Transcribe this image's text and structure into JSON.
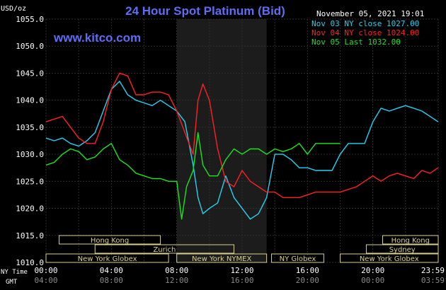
{
  "header": {
    "title": "24 Hour Spot Platinum (Bid)",
    "timestamp": "November 05, 2021 19:01",
    "site": "www.kitco.com",
    "unit": "USD/oz"
  },
  "legend": [
    {
      "text": "Nov 03 NY close 1027.00",
      "color": "#22d3f5"
    },
    {
      "text": "Nov 04 NY close 1024.00",
      "color": "#ff2020"
    },
    {
      "text": "Nov 05 Last 1032.00",
      "color": "#19e619"
    }
  ],
  "colors": {
    "background": "#000000",
    "grid": "#2e2e2e",
    "axis_text": "#ffffff",
    "title": "#5f6df5",
    "site": "#5f6df5",
    "session_shade": "#1c1c1c",
    "market_box": "#d8cf8f"
  },
  "axes": {
    "ny_time_label": "NY Time",
    "gmt_label": "GMT",
    "ny_ticks": [
      "00:00",
      "04:00",
      "08:00",
      "12:00",
      "16:00",
      "20:00",
      "23:59"
    ],
    "gmt_ticks": [
      "04:00",
      "08:00",
      "12:00",
      "16:00",
      "20:00",
      "00:00",
      "03:59"
    ]
  },
  "markets": [
    {
      "label": "Hong Kong",
      "row": 0,
      "start": 0.8,
      "end": 7.0
    },
    {
      "label": "Zurich",
      "row": 1,
      "start": 3.0,
      "end": 11.5
    },
    {
      "label": "New York Globex",
      "row": 2,
      "start": 0.0,
      "end": 7.5
    },
    {
      "label": "New York NYMEX",
      "row": 2,
      "start": 8.0,
      "end": 13.5
    },
    {
      "label": "NY Globex",
      "row": 2,
      "start": 13.8,
      "end": 17.0
    },
    {
      "label": "Hong Kong",
      "row": 0,
      "start": 20.6,
      "end": 24.0
    },
    {
      "label": "Sydney",
      "row": 1,
      "start": 19.6,
      "end": 24.0
    },
    {
      "label": "New York Globex",
      "row": 2,
      "start": 18.0,
      "end": 24.0
    }
  ],
  "chart_data": {
    "type": "line",
    "ylim": [
      1010,
      1055
    ],
    "yticks": [
      1010,
      1015,
      1020,
      1025,
      1030,
      1035,
      1040,
      1045,
      1050,
      1055
    ],
    "xlim": [
      0,
      24
    ],
    "grid": true,
    "legend_position": "top-right",
    "shaded_period": [
      8.0,
      13.5
    ],
    "series": [
      {
        "name": "Nov 03 NY close 1027.00",
        "x": [
          0,
          0.5,
          1.0,
          1.5,
          2.0,
          2.5,
          3.0,
          3.5,
          4.0,
          4.5,
          5.0,
          5.5,
          6.0,
          6.5,
          7.0,
          7.5,
          8.0,
          8.5,
          9.0,
          9.3,
          9.6,
          10.0,
          10.5,
          11.0,
          11.5,
          12.0,
          12.5,
          13.0,
          13.5,
          14.0,
          14.5,
          15.0,
          15.5,
          16.0,
          16.5,
          17.0,
          17.5,
          18.0,
          18.5,
          19.0,
          19.5,
          20.0,
          20.5,
          21.0,
          21.5,
          22.0,
          22.5,
          23.0,
          23.5,
          23.99
        ],
        "y": [
          1033,
          1032.5,
          1033,
          1032,
          1031.5,
          1032.5,
          1034,
          1038,
          1042,
          1043.5,
          1041,
          1040,
          1039.5,
          1039,
          1040,
          1039,
          1038,
          1036,
          1028,
          1022,
          1019,
          1020,
          1021,
          1026,
          1022,
          1020,
          1018,
          1019,
          1022,
          1030,
          1030,
          1029,
          1027.5,
          1027.5,
          1027,
          1027,
          1027,
          1030,
          1032,
          1032,
          1032,
          1036,
          1038.5,
          1038,
          1038.5,
          1039,
          1038.5,
          1038,
          1037,
          1036
        ]
      },
      {
        "name": "Nov 04 NY close 1024.00",
        "x": [
          0,
          0.5,
          1.0,
          1.5,
          2.0,
          2.5,
          3.0,
          3.5,
          4.0,
          4.5,
          5.0,
          5.5,
          6.0,
          6.5,
          7.0,
          7.5,
          8.0,
          8.5,
          9.0,
          9.3,
          9.6,
          10.0,
          10.5,
          11.0,
          11.5,
          12.0,
          12.5,
          13.0,
          13.5,
          14.0,
          14.5,
          15.0,
          15.5,
          16.0,
          16.5,
          17.0,
          17.5,
          18.0,
          18.5,
          19.0,
          19.5,
          20.0,
          20.5,
          21.0,
          21.5,
          22.0,
          22.5,
          23.0,
          23.5,
          23.99
        ],
        "y": [
          1036,
          1036.5,
          1037,
          1035,
          1033,
          1032,
          1032,
          1036,
          1042,
          1045,
          1044.5,
          1041,
          1041,
          1041.5,
          1041.5,
          1041,
          1038,
          1034,
          1030,
          1040,
          1043,
          1040,
          1031,
          1025,
          1024,
          1027,
          1025,
          1024,
          1023,
          1023,
          1022,
          1022,
          1022,
          1022.5,
          1023,
          1023,
          1023,
          1023,
          1023.5,
          1024,
          1025,
          1026,
          1025,
          1026,
          1026.5,
          1026,
          1025.5,
          1027,
          1026.5,
          1027.5
        ]
      },
      {
        "name": "Nov 05 Last 1032.00",
        "x": [
          0,
          0.5,
          1.0,
          1.5,
          2.0,
          2.5,
          3.0,
          3.5,
          4.0,
          4.5,
          5.0,
          5.5,
          6.0,
          6.5,
          7.0,
          7.5,
          8.0,
          8.3,
          8.6,
          9.0,
          9.3,
          9.6,
          10.0,
          10.5,
          11.0,
          11.5,
          12.0,
          12.5,
          13.0,
          13.5,
          14.0,
          14.5,
          15.0,
          15.5,
          16.0,
          16.5,
          17.0,
          17.5,
          18.0
        ],
        "y": [
          1028,
          1028.5,
          1030,
          1031,
          1030.5,
          1029,
          1029.5,
          1031,
          1032,
          1029,
          1028,
          1026.5,
          1026,
          1025.5,
          1025.5,
          1025,
          1025,
          1018,
          1024,
          1027,
          1034,
          1028,
          1026,
          1026,
          1029,
          1031,
          1030,
          1031,
          1031,
          1030,
          1031,
          1030.5,
          1031,
          1032,
          1030,
          1032,
          1032,
          1032,
          1032
        ]
      }
    ]
  }
}
